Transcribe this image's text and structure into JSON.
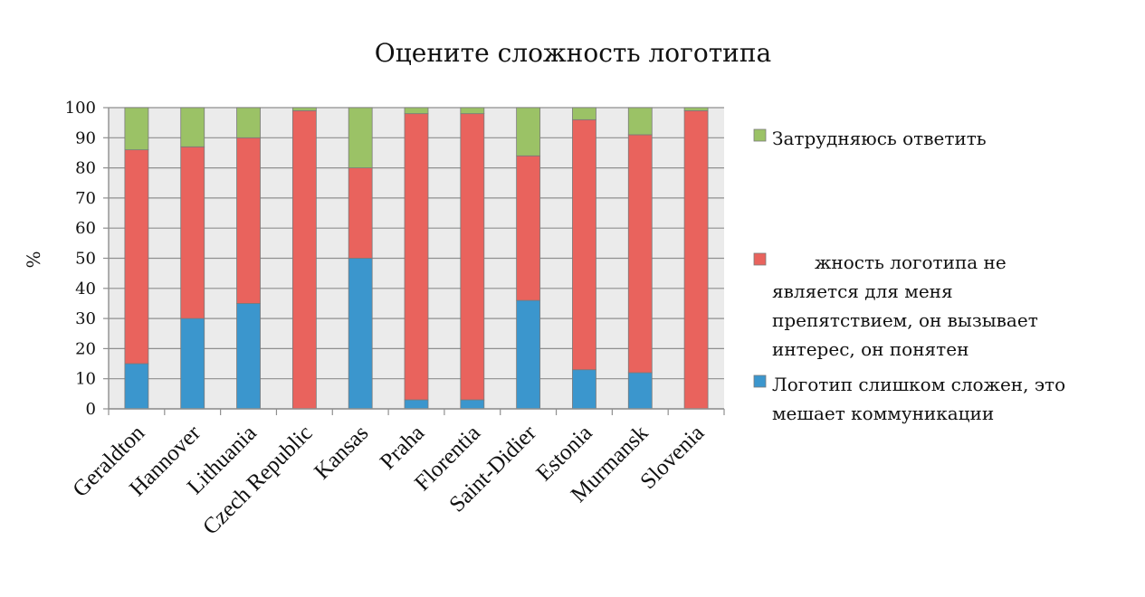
{
  "chart_data": {
    "type": "bar",
    "stacked": true,
    "title": "Оцените сложность логотипа",
    "xlabel": "",
    "ylabel": "%",
    "ylim": [
      0,
      100
    ],
    "yticks": [
      "0",
      "10",
      "20",
      "30",
      "40",
      "50",
      "60",
      "70",
      "80",
      "90",
      "100"
    ],
    "grid": true,
    "legend_position": "right",
    "categories": [
      "Geraldton",
      "Hannover",
      "Lithuania",
      "Czech Republic",
      "Kansas",
      "Praha",
      "Florentia",
      "Saint-Didier",
      "Estonia",
      "Murmansk",
      "Slovenia"
    ],
    "series": [
      {
        "name": "Логотип слишком сложен, это мешает коммуникации",
        "color": "#3b96cd",
        "values": [
          15,
          30,
          35,
          0,
          50,
          3,
          3,
          36,
          13,
          12,
          0
        ]
      },
      {
        "name": "жность логотипа не является для меня препятствием, он вызывает интерес, он понятен",
        "color": "#e9635d",
        "values": [
          71,
          57,
          55,
          99,
          30,
          95,
          95,
          48,
          83,
          79,
          99
        ]
      },
      {
        "name": "Затрудняюсь ответить",
        "color": "#9bc266",
        "values": [
          14,
          13,
          10,
          1,
          20,
          2,
          2,
          16,
          4,
          9,
          1
        ]
      }
    ],
    "legend": [
      {
        "series": 2,
        "lines": [
          "Затрудняюсь ответить"
        ]
      },
      {
        "series": 1,
        "lines": [
          "жность логотипа не",
          "является для меня",
          "препятствием, он вызывает",
          "интерес, он понятен"
        ]
      },
      {
        "series": 0,
        "lines": [
          "Логотип слишком сложен, это",
          "мешает коммуникации"
        ]
      }
    ]
  }
}
